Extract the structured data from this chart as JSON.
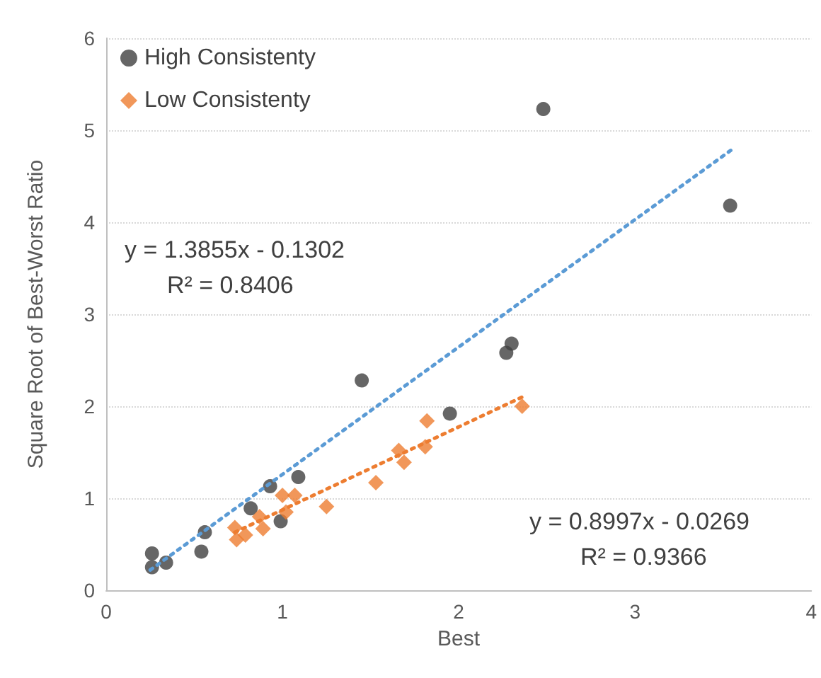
{
  "chart_data": {
    "type": "scatter",
    "xlabel": "Best",
    "ylabel": "Square Root of Best-Worst Ratio",
    "xlim": [
      0,
      4
    ],
    "xticks": [
      0,
      1,
      2,
      3,
      4
    ],
    "ylim": [
      0,
      6
    ],
    "yticks": [
      0,
      1,
      2,
      3,
      4,
      5,
      6
    ],
    "grid": "y",
    "legend": "top left",
    "annotations": [
      "y = 1.3855x - 0.1302",
      "R² = 0.8406",
      "y = 0.8997x - 0.0269",
      "R² = 0.9366"
    ],
    "series": [
      {
        "name": "High Consistenty",
        "color": "#404040",
        "marker": "circle",
        "x": [
          0.26,
          0.26,
          0.34,
          0.56,
          0.54,
          0.82,
          0.93,
          1.09,
          0.99,
          1.95,
          1.45,
          2.27,
          2.3,
          2.48,
          3.54
        ],
        "values": [
          0.4,
          0.25,
          0.3,
          0.63,
          0.42,
          0.89,
          1.13,
          1.23,
          0.75,
          1.92,
          2.28,
          2.58,
          2.68,
          5.23,
          4.18
        ]
      },
      {
        "name": "Low Consistenty",
        "color": "#ed7d31",
        "marker": "diamond",
        "x": [
          0.73,
          0.74,
          0.79,
          0.87,
          0.89,
          1.0,
          1.07,
          1.02,
          1.25,
          1.53,
          1.66,
          1.69,
          1.81,
          1.82,
          2.36
        ],
        "values": [
          0.68,
          0.55,
          0.6,
          0.8,
          0.67,
          1.03,
          1.03,
          0.85,
          0.91,
          1.17,
          1.52,
          1.39,
          1.56,
          1.84,
          2.0
        ]
      },
      {
        "type": "line",
        "color": "#5b9bd5",
        "marker": "none",
        "line_style": "dotted",
        "x": [
          0.25,
          3.55
        ],
        "values": [
          0.22,
          4.79
        ]
      },
      {
        "type": "line",
        "color": "#ed7d31",
        "marker": "none",
        "line_style": "dotted",
        "x": [
          0.73,
          2.36
        ],
        "values": [
          0.63,
          2.1
        ]
      }
    ]
  }
}
